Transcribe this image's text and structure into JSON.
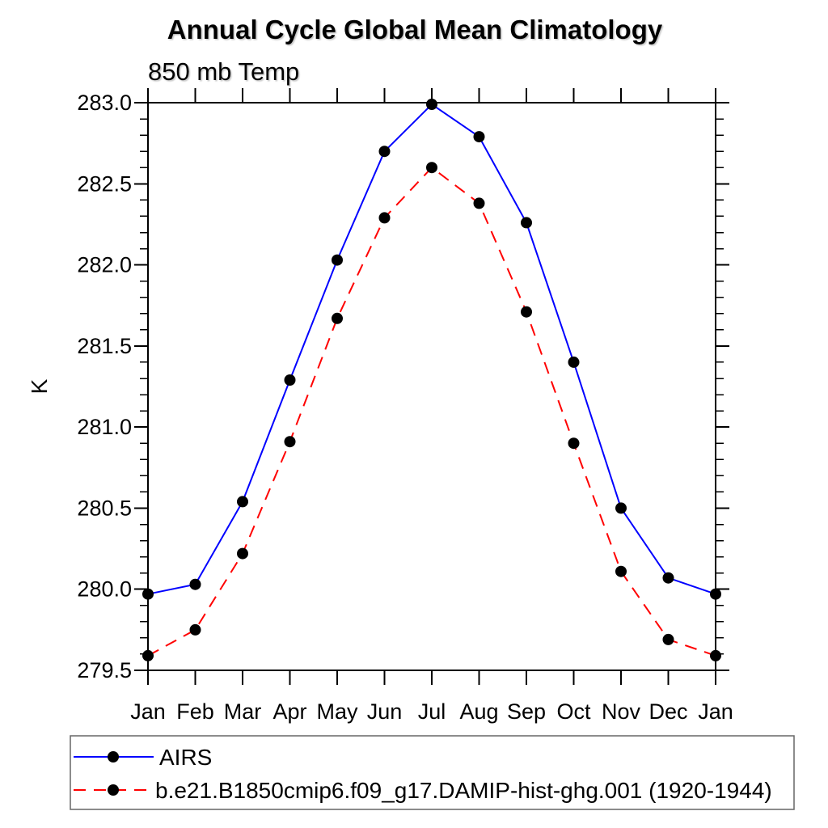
{
  "title": "Annual Cycle Global Mean Climatology",
  "subtitle": "850 mb Temp",
  "chart_data": {
    "type": "line",
    "title": "Annual Cycle Global Mean Climatology",
    "subtitle": "850 mb Temp",
    "xlabel": "",
    "ylabel": "K",
    "categories": [
      "Jan",
      "Feb",
      "Mar",
      "Apr",
      "May",
      "Jun",
      "Jul",
      "Aug",
      "Sep",
      "Oct",
      "Nov",
      "Dec",
      "Jan"
    ],
    "ylim": [
      279.5,
      283.0
    ],
    "ytick_major_step": 0.5,
    "ytick_minor_step": 0.1,
    "grid": false,
    "legend_position": "bottom-left",
    "marker": "filled-circle",
    "marker_color": "#000000",
    "axis_color": "#000000",
    "series": [
      {
        "name": "AIRS",
        "color": "#0000ff",
        "line_style": "solid",
        "values": [
          279.97,
          280.03,
          280.54,
          281.29,
          282.03,
          282.7,
          282.99,
          282.79,
          282.26,
          281.4,
          280.5,
          280.07,
          279.97
        ]
      },
      {
        "name": "b.e21.B1850cmip6.f09_g17.DAMIP-hist-ghg.001 (1920-1944)",
        "color": "#ff0000",
        "line_style": "dashed",
        "values": [
          279.59,
          279.75,
          280.22,
          280.91,
          281.67,
          282.29,
          282.6,
          282.38,
          281.71,
          280.9,
          280.11,
          279.69,
          279.59
        ]
      }
    ]
  }
}
